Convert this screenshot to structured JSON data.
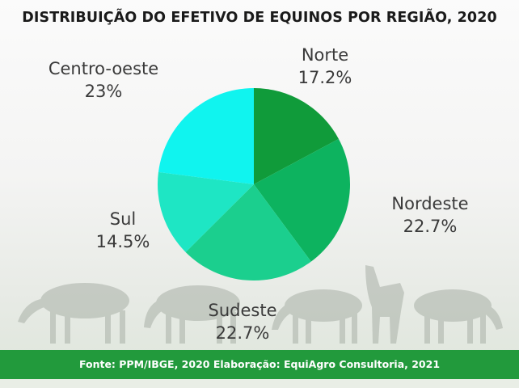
{
  "title": "DISTRIBUIÇÃO DO EFETIVO DE EQUINOS POR REGIÃO, 2020",
  "footer": "Fonte: PPM/IBGE, 2020 Elaboração: EquiAgro Consultoria, 2021",
  "background_icon": "grazing-horses-silhouette",
  "chart_data": {
    "type": "pie",
    "title": "DISTRIBUIÇÃO DO EFETIVO DE EQUINOS POR REGIÃO, 2020",
    "start": "12-o'clock",
    "direction": "clockwise",
    "slices": [
      {
        "name": "Norte",
        "value": 17.2,
        "label": "17.2%",
        "color": "#109b3a"
      },
      {
        "name": "Nordeste",
        "value": 22.7,
        "label": "22.7%",
        "color": "#0db35f"
      },
      {
        "name": "Sudeste",
        "value": 22.7,
        "label": "22.7%",
        "color": "#1bcf8e"
      },
      {
        "name": "Sul",
        "value": 14.5,
        "label": "14.5%",
        "color": "#1ee6c4"
      },
      {
        "name": "Centro-oeste",
        "value": 23,
        "label": "23%",
        "color": "#10f4ef"
      }
    ]
  }
}
